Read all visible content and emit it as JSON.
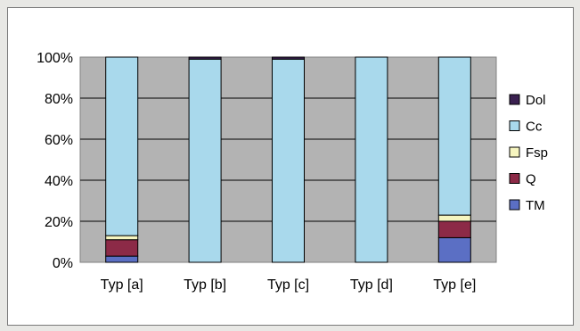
{
  "chart_data": {
    "type": "bar",
    "stacked": true,
    "categories": [
      "Typ [a]",
      "Typ [b]",
      "Typ [c]",
      "Typ [d]",
      "Typ [e]"
    ],
    "series": [
      {
        "name": "TM",
        "color": "#5b6fc4",
        "values": [
          3,
          0,
          0,
          0,
          12
        ]
      },
      {
        "name": "Q",
        "color": "#8c2a47",
        "values": [
          8,
          0,
          0,
          0,
          8
        ]
      },
      {
        "name": "Fsp",
        "color": "#f6f5bf",
        "values": [
          2,
          0,
          0,
          0,
          3
        ]
      },
      {
        "name": "Cc",
        "color": "#a9d9ec",
        "values": [
          87,
          99,
          99,
          100,
          77
        ]
      },
      {
        "name": "Dol",
        "color": "#3a2050",
        "values": [
          0,
          1,
          1,
          0,
          0
        ]
      }
    ],
    "ylim": [
      0,
      100
    ],
    "yticks": [
      "0%",
      "20%",
      "40%",
      "60%",
      "80%",
      "100%"
    ],
    "grid": true,
    "plot_background": "#b3b3b3",
    "legend_position": "right",
    "legend_order": [
      "Dol",
      "Cc",
      "Fsp",
      "Q",
      "TM"
    ]
  }
}
